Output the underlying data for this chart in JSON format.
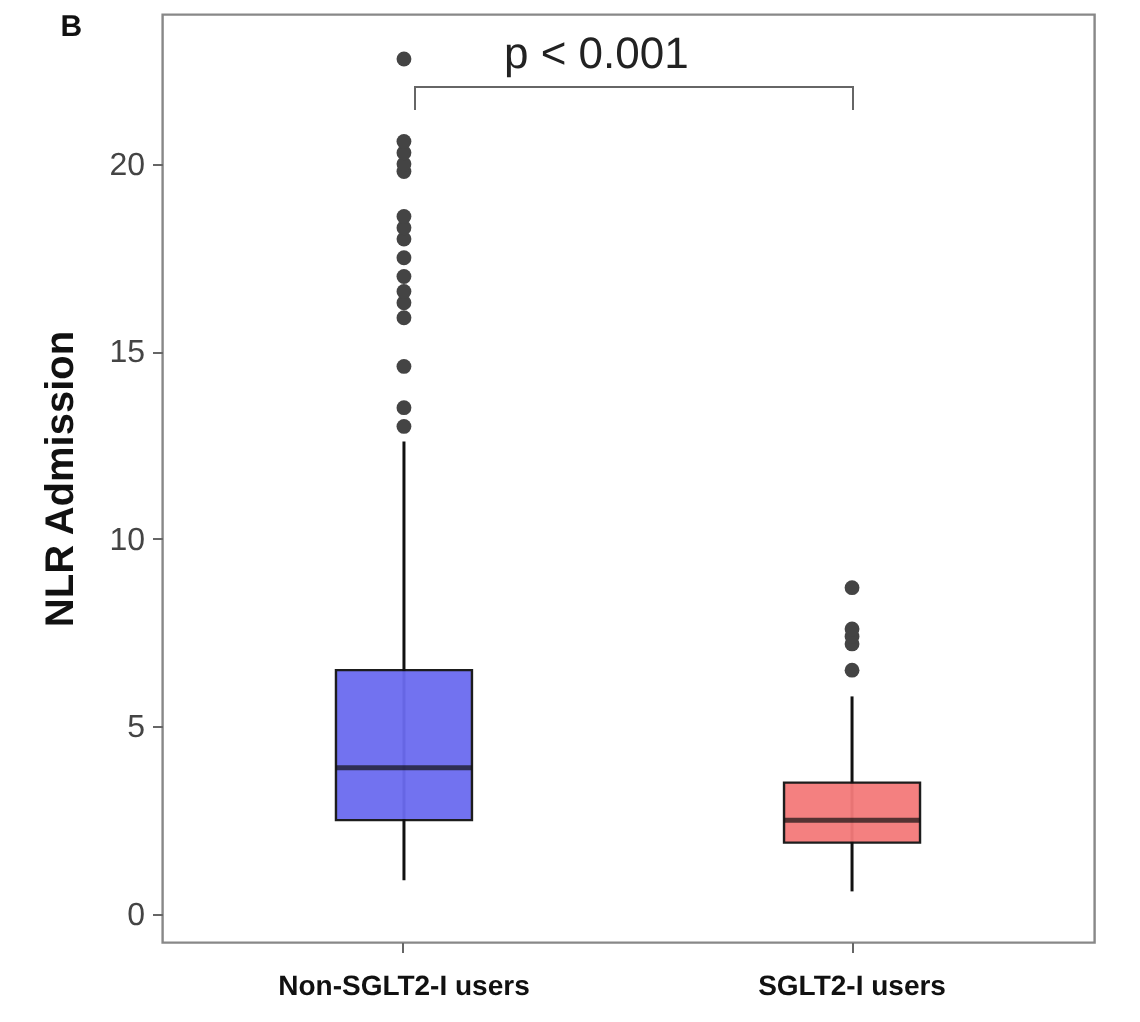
{
  "chart_data": {
    "type": "box",
    "title": "B",
    "ylabel": "NLR Admission",
    "categories": [
      "Non-SGLT2-I users",
      "SGLT2-I users"
    ],
    "ylim": [
      -0.75,
      24
    ],
    "yticks": [
      0,
      5,
      10,
      15,
      20
    ],
    "grid": false,
    "series": [
      {
        "colors": [
          "#6b6bf0",
          "#f47a7a"
        ],
        "boxes": [
          {
            "low": 0.9,
            "q1": 2.5,
            "median": 3.9,
            "q3": 6.5,
            "high": 12.6,
            "outliers": [
              13.0,
              13.5,
              14.6,
              15.9,
              16.3,
              16.6,
              17.0,
              17.5,
              18.0,
              18.3,
              18.6,
              19.8,
              20.0,
              20.3,
              20.6,
              22.8
            ]
          },
          {
            "low": 0.6,
            "q1": 1.9,
            "median": 2.5,
            "q3": 3.5,
            "high": 5.8,
            "outliers": [
              6.5,
              7.2,
              7.4,
              7.6,
              8.7
            ]
          }
        ]
      }
    ],
    "annotations": [
      "p < 0.001"
    ]
  }
}
